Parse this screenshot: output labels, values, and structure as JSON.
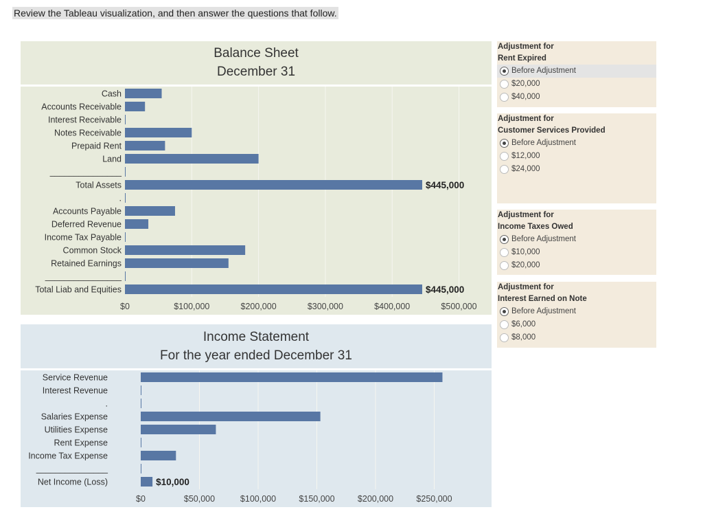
{
  "prompt": "Review the Tableau visualization, and then answer the questions that follow.",
  "colors": {
    "bar": "#5877a4",
    "bs_bg": "#e8ebdc",
    "is_bg": "#dfe8ee",
    "filter_bg": "#f3ebdd"
  },
  "balance_sheet": {
    "title_line1": "Balance Sheet",
    "title_line2": "December 31"
  },
  "income_statement": {
    "title_line1": "Income Statement",
    "title_line2": "For the year ended December 31"
  },
  "chart_data": [
    {
      "type": "bar",
      "orientation": "horizontal",
      "title": "Balance Sheet December 31",
      "categories": [
        "Cash",
        "Accounts Receivable",
        "Interest Receivable",
        "Notes Receivable",
        "Prepaid Rent",
        "Land",
        "_______________",
        "Total Assets",
        ".",
        "Accounts Payable",
        "Deferred Revenue",
        "Income Tax Payable",
        "Common Stock",
        "Retained Earnings",
        "________________",
        "Total Liab and Equities"
      ],
      "values": [
        55000,
        30000,
        0,
        100000,
        60000,
        200000,
        0,
        445000,
        0,
        75000,
        35000,
        0,
        180000,
        155000,
        0,
        445000
      ],
      "data_labels": {
        "7": "$445,000",
        "15": "$445,000"
      },
      "xlim": [
        0,
        520000
      ],
      "ticks": [
        0,
        100000,
        200000,
        300000,
        400000,
        500000
      ],
      "tick_labels": [
        "$0",
        "$100,000",
        "$200,000",
        "$300,000",
        "$400,000",
        "$500,000"
      ],
      "grid": true
    },
    {
      "type": "bar",
      "orientation": "horizontal",
      "title": "Income Statement For the year ended December 31",
      "categories": [
        "Service Revenue",
        "Interest Revenue",
        ".",
        "Salaries Expense",
        "Utilities Expense",
        "Rent Expense",
        "Income Tax Expense",
        "_______________",
        "Net Income (Loss)"
      ],
      "values": [
        257000,
        0,
        0,
        153000,
        64000,
        0,
        30000,
        0,
        10000
      ],
      "data_labels": {
        "8": "$10,000"
      },
      "xlim": [
        0,
        300000
      ],
      "ticks": [
        0,
        50000,
        100000,
        150000,
        200000,
        250000
      ],
      "tick_labels": [
        "$0",
        "$50,000",
        "$100,000",
        "$150,000",
        "$200,000",
        "$250,000"
      ],
      "grid": true
    }
  ],
  "filters": [
    {
      "title1": "Adjustment for",
      "title2": "Rent Expired",
      "options": [
        "Before Adjustment",
        "$20,000",
        "$40,000"
      ],
      "selected": "Before Adjustment"
    },
    {
      "title1": "Adjustment for",
      "title2": "Customer Services Provided",
      "options": [
        "Before Adjustment",
        "$12,000",
        "$24,000"
      ],
      "selected": "Before Adjustment"
    },
    {
      "title1": "Adjustment for",
      "title2": "Income Taxes Owed",
      "options": [
        "Before Adjustment",
        "$10,000",
        "$20,000"
      ],
      "selected": "Before Adjustment"
    },
    {
      "title1": "Adjustment for",
      "title2": "Interest Earned on Note",
      "options": [
        "Before Adjustment",
        "$6,000",
        "$8,000"
      ],
      "selected": "Before Adjustment"
    }
  ]
}
